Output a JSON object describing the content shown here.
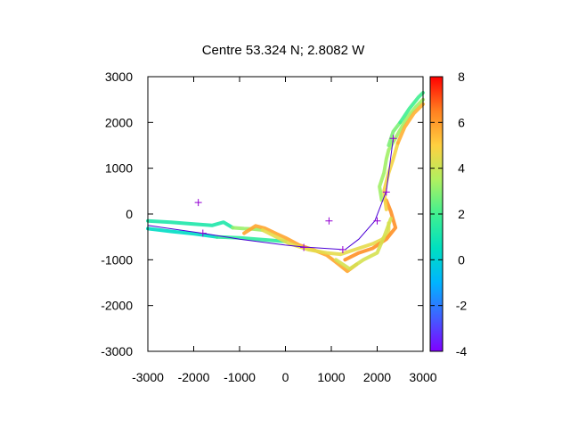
{
  "chart_data": {
    "type": "scatter",
    "title": "Centre 53.324 N; 2.8082  W",
    "xlim": [
      -3000,
      3000
    ],
    "ylim": [
      -3000,
      3000
    ],
    "x_ticks": [
      "-3000",
      "-2000",
      "-1000",
      "0",
      "1000",
      "2000",
      "3000"
    ],
    "y_ticks": [
      "3000",
      "2000",
      "1000",
      "0",
      "-1000",
      "-2000",
      "-3000"
    ],
    "colorbar": {
      "range": [
        -4,
        8
      ],
      "ticks": [
        "8",
        "6",
        "4",
        "2",
        "0",
        "-2",
        "-4"
      ],
      "palette": [
        "#8000ff",
        "#4060ff",
        "#00b4ff",
        "#00e0c0",
        "#40f090",
        "#b0f060",
        "#ffd040",
        "#ff8020",
        "#ff0000"
      ]
    },
    "track_segments": [
      {
        "value": 1.2,
        "points": [
          [
            -3000,
            -150
          ],
          [
            -2500,
            -180
          ],
          [
            -2000,
            -220
          ],
          [
            -1600,
            -250
          ],
          [
            -1350,
            -180
          ],
          [
            -1150,
            -300
          ]
        ]
      },
      {
        "value": 0.4,
        "points": [
          [
            -3000,
            -320
          ],
          [
            -2500,
            -380
          ],
          [
            -2000,
            -430
          ],
          [
            -1500,
            -500
          ]
        ]
      },
      {
        "value": 1.6,
        "points": [
          [
            -1500,
            -500
          ],
          [
            -1000,
            -520
          ],
          [
            -500,
            -560
          ],
          [
            0,
            -600
          ]
        ]
      },
      {
        "value": 3.2,
        "points": [
          [
            -1150,
            -300
          ],
          [
            -900,
            -320
          ],
          [
            -700,
            -330
          ],
          [
            -500,
            -350
          ]
        ]
      },
      {
        "value": 5.8,
        "points": [
          [
            -900,
            -420
          ],
          [
            -650,
            -260
          ],
          [
            -450,
            -310
          ],
          [
            -200,
            -430
          ],
          [
            0,
            -520
          ],
          [
            300,
            -680
          ],
          [
            600,
            -780
          ],
          [
            900,
            -900
          ],
          [
            1100,
            -1050
          ],
          [
            1350,
            -1250
          ],
          [
            1550,
            -1100
          ]
        ]
      },
      {
        "value": 4.5,
        "points": [
          [
            -500,
            -350
          ],
          [
            -200,
            -500
          ],
          [
            100,
            -650
          ],
          [
            500,
            -780
          ],
          [
            900,
            -850
          ],
          [
            1200,
            -880
          ],
          [
            1600,
            -750
          ],
          [
            1900,
            -650
          ],
          [
            2100,
            -560
          ],
          [
            2250,
            -420
          ],
          [
            2250,
            -200
          ]
        ]
      },
      {
        "value": 6.2,
        "points": [
          [
            1300,
            -1000
          ],
          [
            1600,
            -850
          ],
          [
            1900,
            -750
          ],
          [
            2200,
            -550
          ],
          [
            2400,
            -300
          ],
          [
            2300,
            50
          ],
          [
            2200,
            300
          ]
        ]
      },
      {
        "value": 4.2,
        "points": [
          [
            1100,
            -1000
          ],
          [
            1400,
            -1200
          ],
          [
            1700,
            -1000
          ],
          [
            2000,
            -850
          ],
          [
            2150,
            -500
          ],
          [
            2300,
            -100
          ]
        ]
      },
      {
        "value": 3.3,
        "points": [
          [
            2100,
            300
          ],
          [
            2050,
            600
          ],
          [
            2150,
            900
          ],
          [
            2200,
            1200
          ],
          [
            2250,
            1400
          ],
          [
            2450,
            1750
          ],
          [
            2650,
            2100
          ],
          [
            2850,
            2350
          ],
          [
            3000,
            2500
          ]
        ]
      },
      {
        "value": 4.8,
        "points": [
          [
            2200,
            100
          ],
          [
            2150,
            500
          ],
          [
            2250,
            900
          ],
          [
            2350,
            1200
          ],
          [
            2450,
            1550
          ]
        ]
      },
      {
        "value": 5.6,
        "points": [
          [
            2450,
            1550
          ],
          [
            2600,
            1900
          ],
          [
            2800,
            2200
          ],
          [
            3000,
            2400
          ]
        ]
      },
      {
        "value": 2.8,
        "points": [
          [
            2250,
            1500
          ],
          [
            2350,
            1800
          ],
          [
            2500,
            2000
          ]
        ]
      },
      {
        "value": 2.0,
        "points": [
          [
            2500,
            2000
          ],
          [
            2700,
            2300
          ],
          [
            2900,
            2550
          ],
          [
            3000,
            2650
          ]
        ]
      }
    ],
    "line_path": [
      [
        -3000,
        -250
      ],
      [
        -1800,
        -420
      ],
      [
        -1000,
        -550
      ],
      [
        0,
        -680
      ],
      [
        400,
        -720
      ],
      [
        700,
        -740
      ],
      [
        1000,
        -760
      ],
      [
        1300,
        -780
      ],
      [
        1600,
        -550
      ],
      [
        1950,
        -150
      ],
      [
        2200,
        500
      ],
      [
        2350,
        1650
      ]
    ],
    "plus_markers": [
      [
        -1900,
        250
      ],
      [
        -1800,
        -420
      ],
      [
        400,
        -730
      ],
      [
        950,
        -150
      ],
      [
        1250,
        -780
      ],
      [
        2000,
        -150
      ],
      [
        2200,
        480
      ],
      [
        2350,
        1650
      ]
    ],
    "colors": {
      "line": "#4b00d6",
      "marker": "#9400d3",
      "axis": "#000000"
    }
  }
}
